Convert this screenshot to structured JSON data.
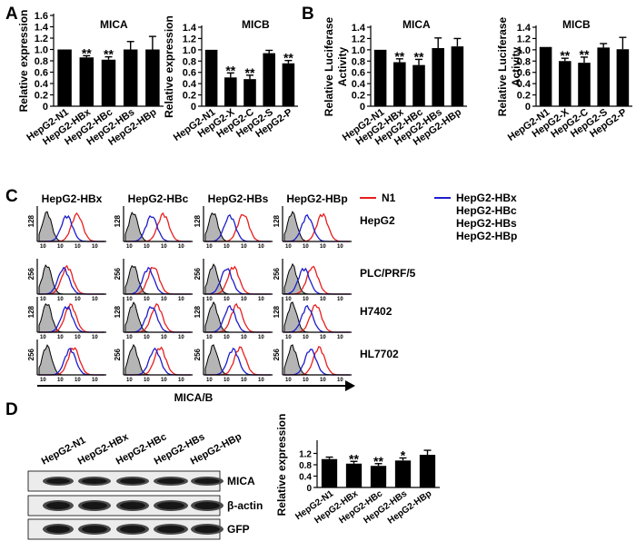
{
  "panels": {
    "A": "A",
    "B": "B",
    "C": "C",
    "D": "D"
  },
  "chart_data": [
    {
      "id": "A-MICA",
      "type": "bar",
      "title": "MICA",
      "ylabel": "Relative expression",
      "ylim": [
        0,
        1.6
      ],
      "yticks": [
        "0",
        "0.2",
        "0.4",
        "0.6",
        "0.8",
        "1.0",
        "1.2",
        "1.4",
        "1.6"
      ],
      "categories": [
        "HepG2-N1",
        "HepG2-HBx",
        "HepG2-HBc",
        "HepG2-HBs",
        "HepG2-HBp"
      ],
      "values": [
        1.0,
        0.86,
        0.82,
        1.0,
        1.0
      ],
      "errors": [
        0,
        0.03,
        0.05,
        0.14,
        0.23
      ],
      "sig": [
        "",
        "**",
        "**",
        "",
        ""
      ]
    },
    {
      "id": "A-MICB",
      "type": "bar",
      "title": "MICB",
      "ylabel": "Relative expression",
      "ylim": [
        0,
        1.4
      ],
      "yticks": [
        "0",
        "0.2",
        "0.4",
        "0.6",
        "0.8",
        "1.0",
        "1.2",
        "1.4"
      ],
      "categories": [
        "HepG2-N1",
        "HepG2-X",
        "HepG2-C",
        "HepG2-S",
        "HepG2-P"
      ],
      "values": [
        1.0,
        0.51,
        0.48,
        0.94,
        0.76
      ],
      "errors": [
        0,
        0.08,
        0.07,
        0.05,
        0.05
      ],
      "sig": [
        "",
        "**",
        "**",
        "",
        "**"
      ]
    },
    {
      "id": "B-MICA",
      "type": "bar",
      "title": "MICA",
      "ylabel": "Relative Luciferase Activity",
      "ylim": [
        0,
        1.4
      ],
      "yticks": [
        "0",
        "0.2",
        "0.4",
        "0.6",
        "0.8",
        "1.0",
        "1.2",
        "1.4"
      ],
      "categories": [
        "HepG2-N1",
        "HepG2-HBx",
        "HepG2-HBc",
        "HepG2-HBs",
        "HepG2-HBp"
      ],
      "values": [
        1.0,
        0.78,
        0.73,
        1.03,
        1.06
      ],
      "errors": [
        0,
        0.06,
        0.1,
        0.18,
        0.14
      ],
      "sig": [
        "",
        "**",
        "**",
        "",
        ""
      ]
    },
    {
      "id": "B-MICB",
      "type": "bar",
      "title": "MICB",
      "ylabel": "Relative Luciferase Activity",
      "ylim": [
        0,
        1.4
      ],
      "yticks": [
        "0",
        "0.2",
        "0.4",
        "0.6",
        "0.8",
        "1.0",
        "1.2",
        "1.4"
      ],
      "categories": [
        "HepG2-N1",
        "HepG2-X",
        "HepG2-C",
        "HepG2-S",
        "HepG2-P"
      ],
      "values": [
        1.05,
        0.8,
        0.77,
        1.04,
        1.01
      ],
      "errors": [
        0,
        0.05,
        0.1,
        0.07,
        0.21
      ],
      "sig": [
        "",
        "**",
        "**",
        "",
        ""
      ]
    },
    {
      "id": "D-expr",
      "type": "bar",
      "title": "",
      "ylabel": "Relative expression",
      "ylim": [
        0,
        1.6
      ],
      "yticks": [
        "0",
        "0.4",
        "0.8",
        "1.2"
      ],
      "categories": [
        "HepG2-N1",
        "HepG2-HBx",
        "HepG2-HBc",
        "HepG2-HBs",
        "HepG2-HBp"
      ],
      "values": [
        1.0,
        0.84,
        0.76,
        0.95,
        1.15
      ],
      "errors": [
        0.07,
        0.08,
        0.08,
        0.09,
        0.16
      ],
      "sig": [
        "",
        "**",
        "**",
        "*",
        ""
      ]
    }
  ],
  "flow": {
    "columns": [
      "HepG2-HBx",
      "HepG2-HBc",
      "HepG2-HBs",
      "HepG2-HBp"
    ],
    "rows": [
      {
        "name": "HepG2",
        "ymax": "128",
        "red_peak": 0.55,
        "blue_peak": 0.45
      },
      {
        "name": "PLC/PRF/5",
        "ymax": "256",
        "red_peak": 0.4,
        "blue_peak": 0.4
      },
      {
        "name": "H7402",
        "ymax": "128",
        "red_peak": 0.45,
        "blue_peak": 0.45
      },
      {
        "name": "HL7702",
        "ymax": "256",
        "red_peak": 0.5,
        "blue_peak": 0.5
      }
    ],
    "xaxis_ticks": [
      "10",
      "10",
      "10",
      "10"
    ],
    "legend": {
      "red": "N1",
      "blue": [
        "HepG2-HBx",
        "HepG2-HBc",
        "HepG2-HBs",
        "HepG2-HBp"
      ]
    },
    "xlabel": "MICA/B",
    "colors": {
      "red": "#e81e1e",
      "blue": "#1d1dcc",
      "gray": "#b5b5b5"
    }
  },
  "blot": {
    "lanes": [
      "HepG2-N1",
      "HepG2-HBx",
      "HepG2-HBc",
      "HepG2-HBs",
      "HepG2-HBp"
    ],
    "rows": [
      "MICA",
      "β-actin",
      "GFP"
    ]
  }
}
